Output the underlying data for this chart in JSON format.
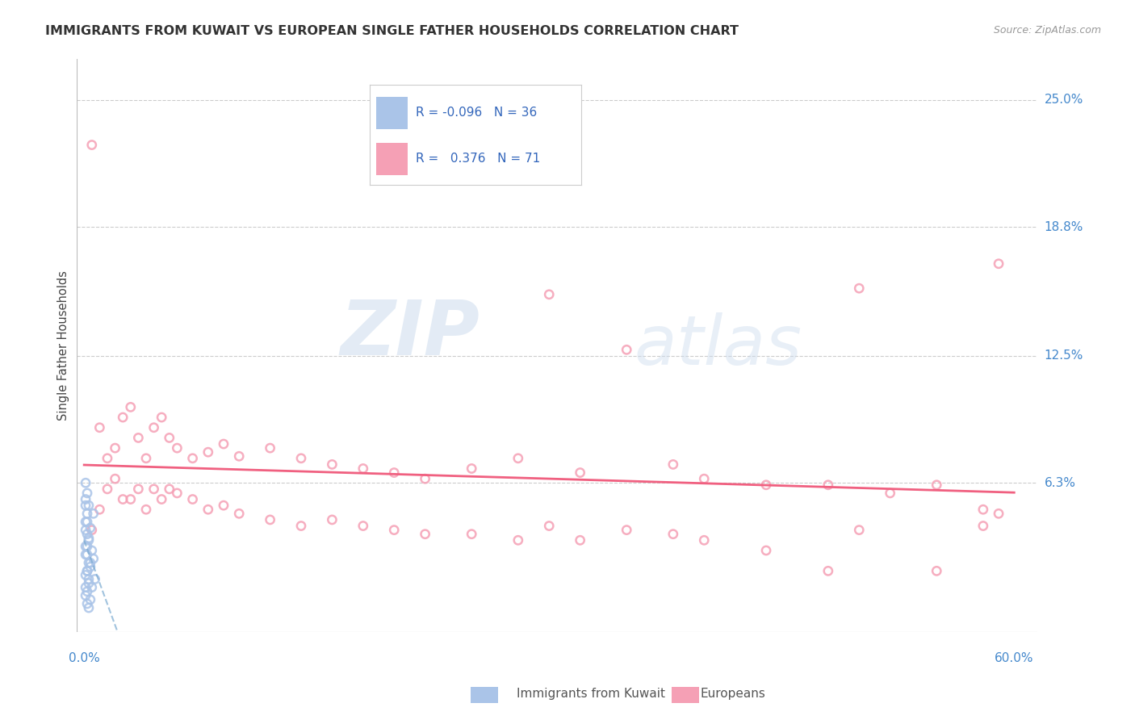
{
  "title": "IMMIGRANTS FROM KUWAIT VS EUROPEAN SINGLE FATHER HOUSEHOLDS CORRELATION CHART",
  "source": "Source: ZipAtlas.com",
  "ylabel": "Single Father Households",
  "ytick_labels": [
    "25.0%",
    "18.8%",
    "12.5%",
    "6.3%"
  ],
  "ytick_values": [
    0.25,
    0.188,
    0.125,
    0.063
  ],
  "xlim": [
    -0.005,
    0.615
  ],
  "ylim": [
    -0.01,
    0.27
  ],
  "legend_r_kuwait": "-0.096",
  "legend_n_kuwait": "36",
  "legend_r_european": "0.376",
  "legend_n_european": "71",
  "kuwait_color": "#aac4e8",
  "european_color": "#f5a0b5",
  "kuwait_line_color": "#7aaad0",
  "european_line_color": "#f06080",
  "watermark_zip": "ZIP",
  "watermark_atlas": "atlas",
  "background_color": "#ffffff",
  "grid_color": "#cccccc",
  "kuwait_points": [
    [
      0.001,
      0.063
    ],
    [
      0.002,
      0.058
    ],
    [
      0.001,
      0.055
    ],
    [
      0.003,
      0.052
    ],
    [
      0.002,
      0.048
    ],
    [
      0.001,
      0.044
    ],
    [
      0.004,
      0.041
    ],
    [
      0.002,
      0.038
    ],
    [
      0.003,
      0.035
    ],
    [
      0.001,
      0.032
    ],
    [
      0.005,
      0.03
    ],
    [
      0.002,
      0.028
    ],
    [
      0.006,
      0.026
    ],
    [
      0.003,
      0.024
    ],
    [
      0.004,
      0.022
    ],
    [
      0.002,
      0.02
    ],
    [
      0.001,
      0.018
    ],
    [
      0.007,
      0.016
    ],
    [
      0.003,
      0.014
    ],
    [
      0.005,
      0.012
    ],
    [
      0.002,
      0.01
    ],
    [
      0.001,
      0.008
    ],
    [
      0.004,
      0.006
    ],
    [
      0.002,
      0.004
    ],
    [
      0.003,
      0.002
    ],
    [
      0.001,
      0.052
    ],
    [
      0.006,
      0.048
    ],
    [
      0.002,
      0.044
    ],
    [
      0.001,
      0.04
    ],
    [
      0.003,
      0.036
    ],
    [
      0.002,
      0.032
    ],
    [
      0.001,
      0.028
    ],
    [
      0.004,
      0.024
    ],
    [
      0.002,
      0.02
    ],
    [
      0.003,
      0.016
    ],
    [
      0.001,
      0.012
    ]
  ],
  "european_points": [
    [
      0.005,
      0.228
    ],
    [
      0.005,
      0.04
    ],
    [
      0.01,
      0.09
    ],
    [
      0.01,
      0.05
    ],
    [
      0.015,
      0.075
    ],
    [
      0.015,
      0.06
    ],
    [
      0.02,
      0.08
    ],
    [
      0.02,
      0.065
    ],
    [
      0.025,
      0.095
    ],
    [
      0.025,
      0.055
    ],
    [
      0.03,
      0.1
    ],
    [
      0.03,
      0.055
    ],
    [
      0.035,
      0.085
    ],
    [
      0.035,
      0.06
    ],
    [
      0.04,
      0.075
    ],
    [
      0.04,
      0.05
    ],
    [
      0.045,
      0.09
    ],
    [
      0.045,
      0.06
    ],
    [
      0.05,
      0.095
    ],
    [
      0.05,
      0.055
    ],
    [
      0.055,
      0.085
    ],
    [
      0.055,
      0.06
    ],
    [
      0.06,
      0.08
    ],
    [
      0.06,
      0.058
    ],
    [
      0.07,
      0.075
    ],
    [
      0.07,
      0.055
    ],
    [
      0.08,
      0.078
    ],
    [
      0.08,
      0.05
    ],
    [
      0.09,
      0.082
    ],
    [
      0.09,
      0.052
    ],
    [
      0.1,
      0.076
    ],
    [
      0.1,
      0.048
    ],
    [
      0.12,
      0.08
    ],
    [
      0.12,
      0.045
    ],
    [
      0.14,
      0.075
    ],
    [
      0.14,
      0.042
    ],
    [
      0.16,
      0.072
    ],
    [
      0.16,
      0.045
    ],
    [
      0.18,
      0.07
    ],
    [
      0.18,
      0.042
    ],
    [
      0.2,
      0.068
    ],
    [
      0.2,
      0.04
    ],
    [
      0.22,
      0.065
    ],
    [
      0.22,
      0.038
    ],
    [
      0.25,
      0.07
    ],
    [
      0.25,
      0.038
    ],
    [
      0.28,
      0.075
    ],
    [
      0.28,
      0.035
    ],
    [
      0.3,
      0.155
    ],
    [
      0.3,
      0.042
    ],
    [
      0.32,
      0.068
    ],
    [
      0.32,
      0.035
    ],
    [
      0.35,
      0.128
    ],
    [
      0.35,
      0.04
    ],
    [
      0.38,
      0.072
    ],
    [
      0.38,
      0.038
    ],
    [
      0.4,
      0.065
    ],
    [
      0.4,
      0.035
    ],
    [
      0.44,
      0.062
    ],
    [
      0.44,
      0.03
    ],
    [
      0.48,
      0.062
    ],
    [
      0.48,
      0.02
    ],
    [
      0.5,
      0.158
    ],
    [
      0.5,
      0.04
    ],
    [
      0.52,
      0.058
    ],
    [
      0.55,
      0.062
    ],
    [
      0.55,
      0.02
    ],
    [
      0.58,
      0.05
    ],
    [
      0.58,
      0.042
    ],
    [
      0.59,
      0.17
    ],
    [
      0.59,
      0.048
    ]
  ]
}
